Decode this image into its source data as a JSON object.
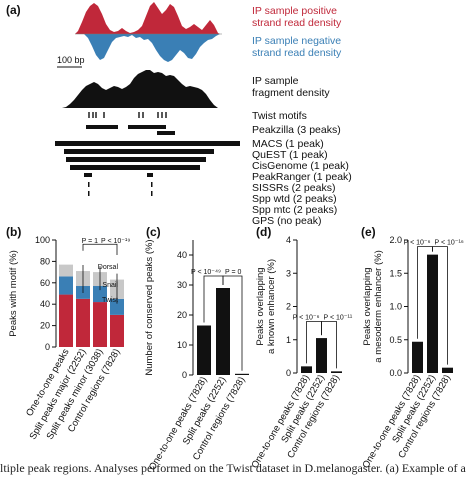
{
  "panel_a": {
    "label": "(a)",
    "pos_strand_label": "IP sample positive\nstrand read density",
    "neg_strand_label": "IP sample negative\nstrand read density",
    "fragment_label": "IP sample\nfragment density",
    "scale_bar_label": "100 bp",
    "colors": {
      "positive": "#c0283a",
      "negative": "#3a7fb5",
      "fragment": "#111111"
    },
    "tracks": [
      {
        "label": "Twist motifs"
      },
      {
        "label": "Peakzilla (3 peaks)"
      },
      {
        "label": "MACS (1 peak)"
      },
      {
        "label": "QuEST (1 peak)"
      },
      {
        "label": "CisGenome (1 peak)"
      },
      {
        "label": "PeakRanger (1 peak)"
      },
      {
        "label": "SISSRs (2 peaks)"
      },
      {
        "label": "Spp wtd (2 peaks)"
      },
      {
        "label": "Spp mtc (2 peaks)"
      },
      {
        "label": "GPS (no peak)"
      }
    ]
  },
  "chart_data": [
    {
      "type": "bar",
      "panel": "(b)",
      "ylabel": "Peaks with motif (%)",
      "ylim": [
        0,
        100
      ],
      "yticks": [
        0,
        20,
        40,
        60,
        80,
        100
      ],
      "categories": [
        "One-to-one peaks",
        "Split peaks major (2252)",
        "Split peaks minor (3038)",
        "Control regions (7828)"
      ],
      "series": [
        {
          "name": "Twist",
          "color": "#c0283a",
          "values": [
            49,
            45,
            42,
            30
          ]
        },
        {
          "name": "Snail",
          "color": "#3a7fb5",
          "values": [
            17,
            12,
            15,
            15
          ]
        },
        {
          "name": "Dorsal",
          "color": "#c8c8c8",
          "values": [
            11,
            14,
            13,
            18
          ]
        }
      ],
      "legend": [
        "Dorsal",
        "Snail",
        "Twist"
      ],
      "annotation": "P = 1",
      "annotation2": "P < 10⁻¹⁹"
    },
    {
      "type": "bar",
      "panel": "(c)",
      "ylabel": "Number of conserved peaks (%)",
      "ylim": [
        0,
        45
      ],
      "yticks": [
        0,
        10,
        20,
        30,
        40
      ],
      "categories": [
        "One-to-one peaks (7828)",
        "Split peaks (2252)",
        "Control regions (7828)"
      ],
      "values": [
        16.5,
        29,
        0.4
      ],
      "annotation": "P < 10⁻⁴⁹",
      "annotation2": "P = 0"
    },
    {
      "type": "bar",
      "panel": "(d)",
      "ylabel": "Peaks overlapping\na known enhancer (%)",
      "ylim": [
        0,
        4
      ],
      "yticks": [
        0,
        1,
        2,
        3,
        4
      ],
      "categories": [
        "One-to-one peaks (7828)",
        "Split peaks (2252)",
        "Control regions (7828)"
      ],
      "values": [
        0.2,
        1.05,
        0.05
      ],
      "annotation": "P < 10⁻⁶",
      "annotation2": "P < 10⁻¹¹"
    },
    {
      "type": "bar",
      "panel": "(e)",
      "ylabel": "Peaks overlapping\na mesoderm enhancer (%)",
      "ylim": [
        0,
        2
      ],
      "yticks": [
        0.0,
        0.5,
        1.0,
        1.5,
        2.0
      ],
      "categories": [
        "One-to-one peaks (7828)",
        "Split peaks (2252)",
        "Control regions (7828)"
      ],
      "values": [
        0.47,
        1.78,
        0.08
      ],
      "annotation": "P < 10⁻⁶",
      "annotation2": "P < 10⁻¹⁶"
    }
  ],
  "caption": "ltiple peak regions. Analyses performed on the Twist dataset in D.melanogaster. (a) Example of a"
}
